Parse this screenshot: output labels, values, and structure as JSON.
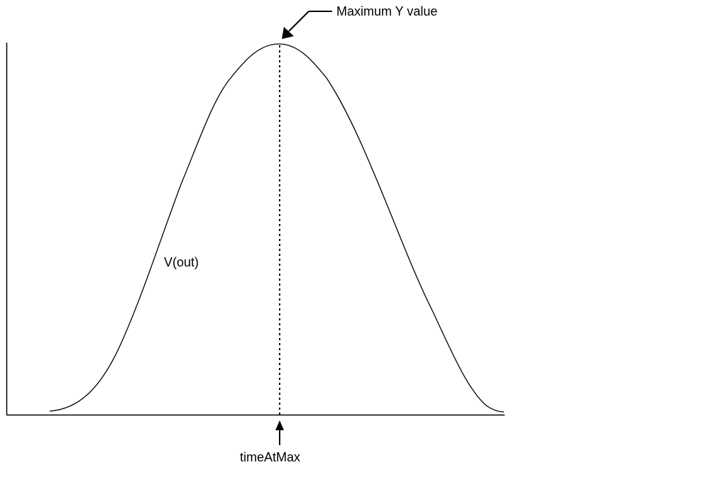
{
  "labels": {
    "max_annotation": "Maximum Y value",
    "curve": "V(out)",
    "x_annotation": "timeAtMax"
  },
  "colors": {
    "ink": "#000000",
    "background": "#ffffff"
  }
}
